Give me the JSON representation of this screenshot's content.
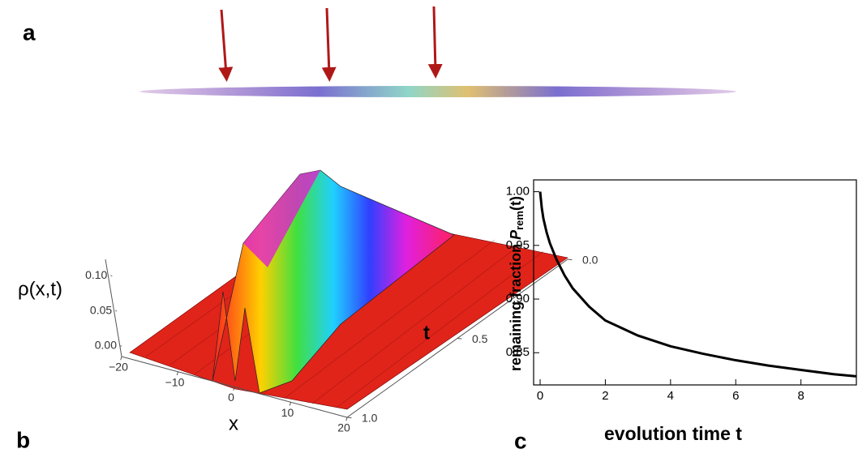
{
  "panel_labels": [
    "a",
    "b",
    "c"
  ],
  "chart_data": [
    {
      "type": "surface3d",
      "z_label": "ρ(x,t)",
      "x_label": "x",
      "t_label": "t",
      "xlim": [
        -20,
        20
      ],
      "xticks": [
        {
          "value": -20,
          "label": "−20"
        },
        {
          "value": -10,
          "label": "−10"
        },
        0,
        10,
        20
      ],
      "tlim": [
        0,
        1
      ],
      "tticks": [
        {
          "value": 0,
          "label": "0.0"
        },
        0.5,
        {
          "value": 1,
          "label": "1.0"
        }
      ],
      "zlim": [
        0,
        0.12
      ],
      "zticks": [
        {
          "value": 0,
          "label": "0.00"
        },
        0.05,
        {
          "value": 0.1,
          "label": "0.10"
        }
      ]
    },
    {
      "type": "line",
      "x_label": "evolution time t",
      "y_label": {
        "text": "remaining fraction ",
        "symbol": "P",
        "subscript": "rem",
        "argument": "(t)"
      },
      "x": [
        0,
        0.05,
        0.1,
        0.2,
        0.3,
        0.5,
        0.75,
        1,
        1.5,
        2,
        3,
        4,
        5,
        6,
        7,
        8,
        9,
        9.7
      ],
      "values": [
        1.0,
        0.985,
        0.975,
        0.962,
        0.952,
        0.937,
        0.922,
        0.91,
        0.893,
        0.88,
        0.866,
        0.856,
        0.849,
        0.843,
        0.838,
        0.834,
        0.83,
        0.828
      ],
      "color": "#000000",
      "xlim": [
        -0.2,
        9.7
      ],
      "xticks": [
        0,
        2,
        4,
        6,
        8
      ],
      "ylim": [
        0.82,
        1.011
      ],
      "yticks": [
        0.85,
        {
          "value": 0.9,
          "label": "0.90"
        },
        0.95,
        {
          "value": 1,
          "label": "1.00"
        }
      ]
    }
  ]
}
